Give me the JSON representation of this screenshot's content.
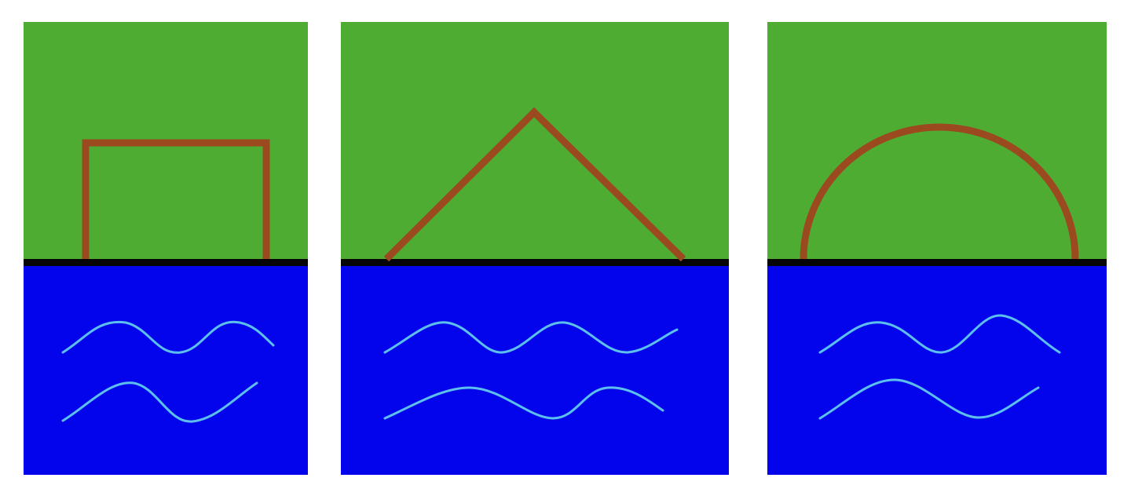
{
  "colors": {
    "land": "#4fac33",
    "water": "#0404ec",
    "shoreline": "#050505",
    "shape_outline": "#9b4a1f",
    "wave": "#5cc0ee",
    "background": "#ffffff"
  },
  "panels": [
    {
      "id": "square",
      "shape": "square-outline",
      "waves": 2
    },
    {
      "id": "triangle",
      "shape": "triangle-outline",
      "waves": 2
    },
    {
      "id": "semicircle",
      "shape": "semicircle-outline",
      "waves": 2
    }
  ]
}
